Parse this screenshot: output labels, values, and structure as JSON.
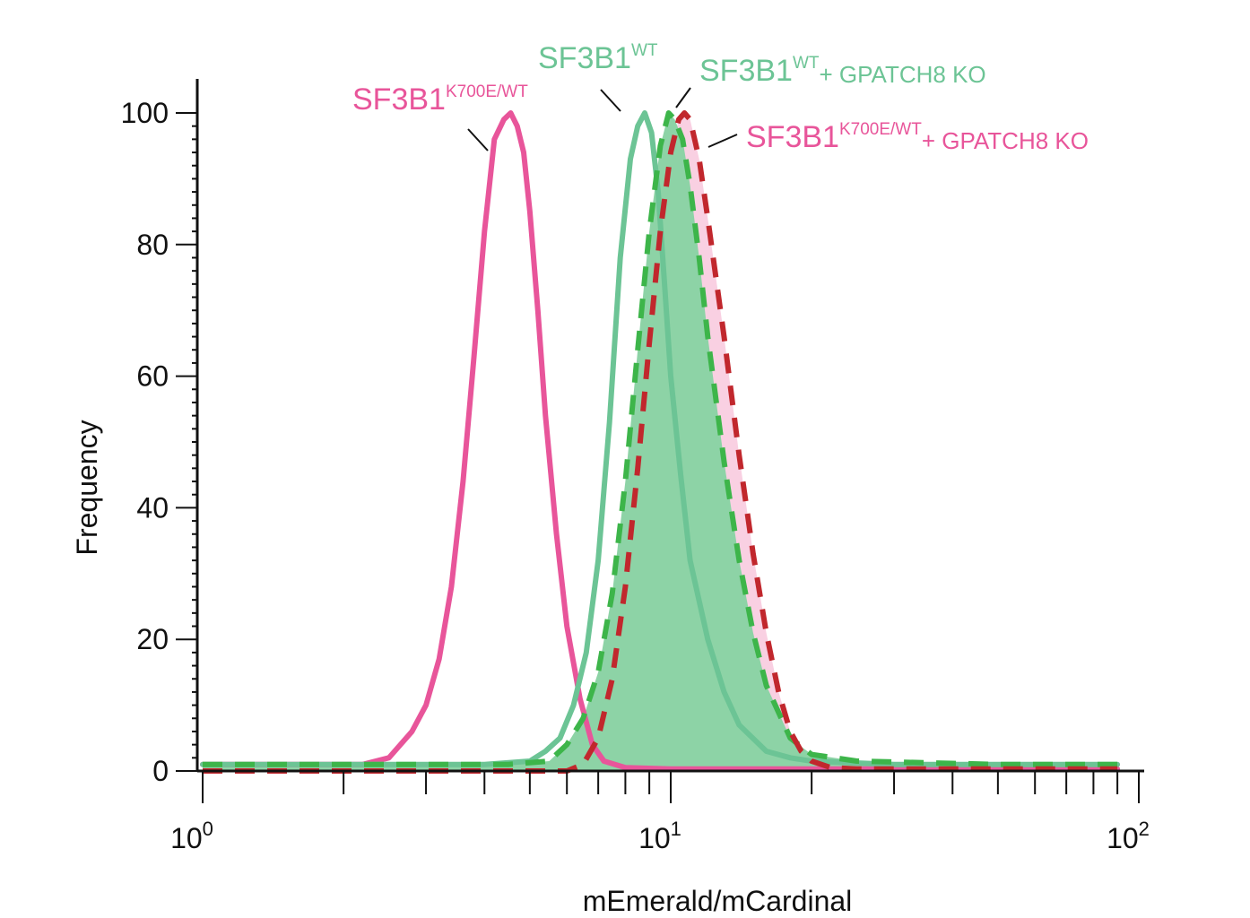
{
  "chart_data": {
    "type": "area",
    "title": "",
    "xlabel": "mEmerald/mCardinal",
    "ylabel": "Frequency",
    "xscale": "log",
    "xlim": [
      1,
      100
    ],
    "ylim": [
      0,
      100
    ],
    "x_ticks": [
      {
        "value": 1,
        "base": "10",
        "exp": "0"
      },
      {
        "value": 10,
        "base": "10",
        "exp": "1"
      },
      {
        "value": 100,
        "base": "10",
        "exp": "2"
      }
    ],
    "y_ticks": [
      0,
      20,
      40,
      60,
      80,
      100
    ],
    "grid": false,
    "legend": "none",
    "series": [
      {
        "key": "k700e",
        "style": "solid-line",
        "color": "#e8559a",
        "x": [
          1.0,
          2.2,
          2.5,
          2.8,
          3.0,
          3.2,
          3.4,
          3.6,
          3.8,
          4.0,
          4.2,
          4.4,
          4.55,
          4.7,
          4.85,
          5.0,
          5.2,
          5.4,
          5.7,
          6.0,
          6.4,
          6.8,
          7.2,
          8.0,
          10,
          20,
          50,
          90
        ],
        "y": [
          1,
          1,
          2,
          6,
          10,
          17,
          28,
          44,
          63,
          82,
          96,
          99,
          100,
          98,
          94,
          85,
          70,
          54,
          36,
          22,
          11,
          4,
          1.5,
          0.5,
          0.3,
          0.3,
          0.3,
          0.3
        ]
      },
      {
        "key": "wt",
        "style": "solid-line",
        "color": "#6cc495",
        "x": [
          1.0,
          4.0,
          5.0,
          5.4,
          5.8,
          6.2,
          6.6,
          7.0,
          7.4,
          7.8,
          8.2,
          8.5,
          8.8,
          9.1,
          9.4,
          9.7,
          10.0,
          10.5,
          11,
          12,
          13,
          14,
          16,
          18,
          20,
          30,
          50,
          90
        ],
        "y": [
          1,
          1,
          1.5,
          3,
          5,
          10,
          18,
          32,
          53,
          78,
          93,
          98,
          100,
          97,
          88,
          74,
          60,
          45,
          32,
          20,
          12,
          7,
          3,
          2,
          1.5,
          1,
          1,
          1
        ]
      },
      {
        "key": "wt_gpatch8",
        "style": "dashed-filled",
        "color": "#3db54a",
        "fill": "#8dd3a6",
        "x": [
          1.0,
          4.5,
          5.5,
          6.0,
          6.5,
          7.0,
          7.5,
          8.0,
          8.5,
          9.0,
          9.5,
          9.9,
          10.2,
          10.6,
          11,
          11.5,
          12,
          13,
          14,
          15,
          16,
          18,
          20,
          25,
          50,
          90
        ],
        "y": [
          1,
          1,
          1.5,
          4,
          8,
          15,
          27,
          44,
          64,
          82,
          95,
          100,
          99,
          96,
          89,
          78,
          66,
          47,
          32,
          21,
          13,
          5,
          2.5,
          1.5,
          1,
          1
        ]
      },
      {
        "key": "k700e_gpatch8",
        "style": "dashed-filled",
        "color": "#c1272d",
        "fill": "#f9d0e2",
        "x": [
          1.0,
          6.0,
          6.5,
          7.0,
          7.5,
          8.0,
          8.5,
          9.0,
          9.5,
          10.0,
          10.4,
          10.7,
          11.0,
          11.5,
          12,
          13,
          14,
          15,
          16,
          17,
          18,
          19,
          20,
          22,
          25,
          50,
          90
        ],
        "y": [
          0,
          0,
          1,
          5,
          14,
          28,
          46,
          65,
          82,
          94,
          99,
          100,
          99,
          93,
          84,
          66,
          48,
          33,
          21,
          12,
          6,
          3,
          1.5,
          0.5,
          0.3,
          0.3,
          0.3
        ]
      }
    ],
    "annotations": [
      {
        "key": "k700e",
        "color": "#e8559a",
        "main": "SF3B1",
        "sup": "K700E/WT",
        "rest": ""
      },
      {
        "key": "wt",
        "color": "#6cc495",
        "main": "SF3B1",
        "sup": "WT",
        "rest": ""
      },
      {
        "key": "wt_gpatch8",
        "color": "#6cc495",
        "main": "SF3B1",
        "sup": "WT",
        "rest": "+ GPATCH8 KO"
      },
      {
        "key": "k700e_gpatch8",
        "color": "#e8559a",
        "main": "SF3B1",
        "sup": "K700E/WT",
        "rest": "+ GPATCH8 KO"
      }
    ]
  }
}
